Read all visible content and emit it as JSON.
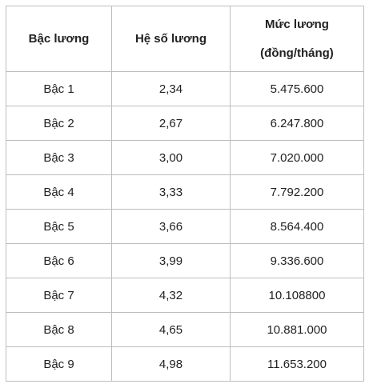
{
  "table": {
    "headers": {
      "level": "Bậc lương",
      "coefficient": "Hệ số lương",
      "salary_line1": "Mức lương",
      "salary_line2": "(đồng/tháng)"
    },
    "rows": [
      {
        "level": "Bậc 1",
        "coefficient": "2,34",
        "salary": "5.475.600"
      },
      {
        "level": "Bậc 2",
        "coefficient": "2,67",
        "salary": "6.247.800"
      },
      {
        "level": "Bậc 3",
        "coefficient": "3,00",
        "salary": "7.020.000"
      },
      {
        "level": "Bậc 4",
        "coefficient": "3,33",
        "salary": "7.792.200"
      },
      {
        "level": "Bậc 5",
        "coefficient": "3,66",
        "salary": "8.564.400"
      },
      {
        "level": "Bậc 6",
        "coefficient": "3,99",
        "salary": "9.336.600"
      },
      {
        "level": "Bậc 7",
        "coefficient": "4,32",
        "salary": "10.108800"
      },
      {
        "level": "Bậc 8",
        "coefficient": "4,65",
        "salary": "10.881.000"
      },
      {
        "level": "Bậc 9",
        "coefficient": "4,98",
        "salary": "11.653.200"
      }
    ]
  }
}
